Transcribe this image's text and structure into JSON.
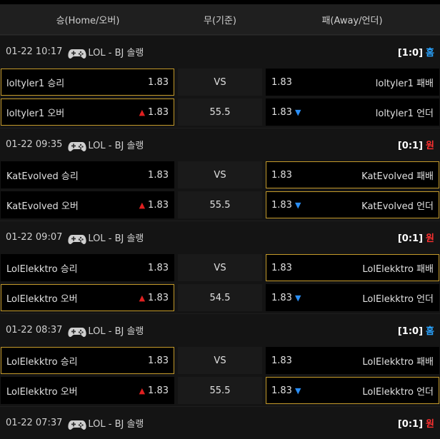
{
  "header": {
    "home_label": "승(Home/오버)",
    "draw_label": "무(기준)",
    "away_label": "패(Away/언더)"
  },
  "matches": [
    {
      "time": "01-22 10:17",
      "league": "LOL - BJ 솔랭",
      "score": "[1:0]",
      "outcome": "홈",
      "outcome_type": "home",
      "win": {
        "left": "loltyler1 승리",
        "left_odds": "1.83",
        "mid": "VS",
        "right_odds": "1.83",
        "right": "loltyler1 패배",
        "selected": "left"
      },
      "ou": {
        "left": "loltyler1 오버",
        "left_odds": "1.83",
        "mid": "55.5",
        "right_odds": "1.83",
        "right": "loltyler1 언더",
        "selected": "left"
      }
    },
    {
      "time": "01-22 09:35",
      "league": "LOL - BJ 솔랭",
      "score": "[0:1]",
      "outcome": "원",
      "outcome_type": "away",
      "win": {
        "left": "KatEvolved 승리",
        "left_odds": "1.83",
        "mid": "VS",
        "right_odds": "1.83",
        "right": "KatEvolved 패배",
        "selected": "right"
      },
      "ou": {
        "left": "KatEvolved 오버",
        "left_odds": "1.83",
        "mid": "55.5",
        "right_odds": "1.83",
        "right": "KatEvolved 언더",
        "selected": "right"
      }
    },
    {
      "time": "01-22 09:07",
      "league": "LOL - BJ 솔랭",
      "score": "[0:1]",
      "outcome": "원",
      "outcome_type": "away",
      "win": {
        "left": "LolElekktro 승리",
        "left_odds": "1.83",
        "mid": "VS",
        "right_odds": "1.83",
        "right": "LolElekktro 패배",
        "selected": "right"
      },
      "ou": {
        "left": "LolElekktro 오버",
        "left_odds": "1.83",
        "mid": "54.5",
        "right_odds": "1.83",
        "right": "LolElekktro 언더",
        "selected": "left"
      }
    },
    {
      "time": "01-22 08:37",
      "league": "LOL - BJ 솔랭",
      "score": "[1:0]",
      "outcome": "홈",
      "outcome_type": "home",
      "win": {
        "left": "LolElekktro 승리",
        "left_odds": "1.83",
        "mid": "VS",
        "right_odds": "1.83",
        "right": "LolElekktro 패배",
        "selected": "left"
      },
      "ou": {
        "left": "LolElekktro 오버",
        "left_odds": "1.83",
        "mid": "55.5",
        "right_odds": "1.83",
        "right": "LolElekktro 언더",
        "selected": "right"
      }
    },
    {
      "time": "01-22 07:37",
      "league": "LOL - BJ 솔랭",
      "score": "[0:1]",
      "outcome": "원",
      "outcome_type": "away"
    }
  ],
  "icons": {
    "game": "gamepad-icon",
    "up": "arrow-up-icon",
    "down": "arrow-down-icon"
  },
  "colors": {
    "home": "#29a3ff",
    "away": "#ff3030",
    "selected_border": "#c49a2a",
    "up_arrow": "#e02020",
    "down_arrow": "#2a8ef5"
  }
}
